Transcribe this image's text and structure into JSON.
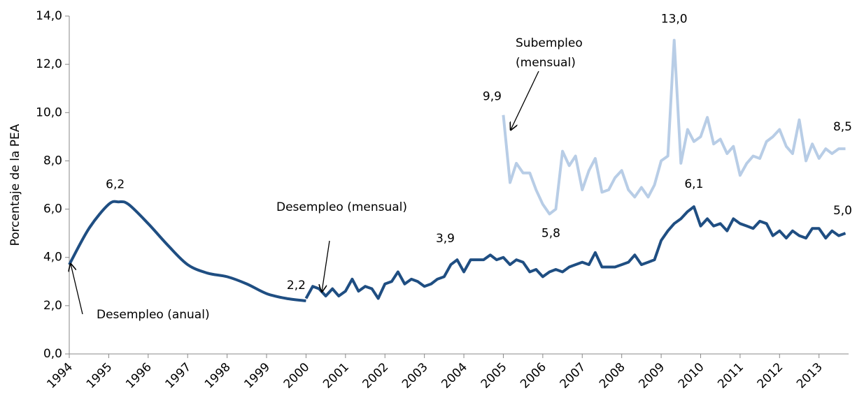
{
  "chart_data": {
    "type": "line",
    "y_label": "Porcentaje de la PEA",
    "xlim": [
      1994,
      2013.75
    ],
    "xticks": [
      1994,
      1995,
      1996,
      1997,
      1998,
      1999,
      2000,
      2001,
      2002,
      2003,
      2004,
      2005,
      2006,
      2007,
      2008,
      2009,
      2010,
      2011,
      2012,
      2013
    ],
    "ylim": [
      0,
      14
    ],
    "yticks": [
      {
        "value": 0,
        "label": "0,0"
      },
      {
        "value": 2,
        "label": "2,0"
      },
      {
        "value": 4,
        "label": "4,0"
      },
      {
        "value": 6,
        "label": "6,0"
      },
      {
        "value": 8,
        "label": "8,0"
      },
      {
        "value": 10,
        "label": "10,0"
      },
      {
        "value": 12,
        "label": "12,0"
      },
      {
        "value": 14,
        "label": "14,0"
      }
    ],
    "series": [
      {
        "name": "Desempleo (anual)",
        "color": "#1f4e82",
        "smooth": true,
        "x": [
          1994,
          1994.5,
          1995,
          1995.25,
          1995.5,
          1996,
          1996.5,
          1997,
          1997.5,
          1998,
          1998.5,
          1999,
          1999.5,
          2000
        ],
        "values": [
          3.7,
          5.2,
          6.2,
          6.3,
          6.2,
          5.4,
          4.5,
          3.7,
          3.35,
          3.2,
          2.9,
          2.5,
          2.3,
          2.2
        ]
      },
      {
        "name": "Desempleo (mensual)",
        "color": "#1f4e82",
        "x": [
          2000,
          2000.17,
          2000.33,
          2000.5,
          2000.67,
          2000.83,
          2001,
          2001.17,
          2001.33,
          2001.5,
          2001.67,
          2001.83,
          2002,
          2002.17,
          2002.33,
          2002.5,
          2002.67,
          2002.83,
          2003,
          2003.17,
          2003.33,
          2003.5,
          2003.67,
          2003.83,
          2004,
          2004.17,
          2004.33,
          2004.5,
          2004.67,
          2004.83,
          2005,
          2005.17,
          2005.33,
          2005.5,
          2005.67,
          2005.83,
          2006,
          2006.17,
          2006.33,
          2006.5,
          2006.67,
          2006.83,
          2007,
          2007.17,
          2007.33,
          2007.5,
          2007.67,
          2007.83,
          2008,
          2008.17,
          2008.33,
          2008.5,
          2008.67,
          2008.83,
          2009,
          2009.17,
          2009.33,
          2009.5,
          2009.67,
          2009.83,
          2010,
          2010.17,
          2010.33,
          2010.5,
          2010.67,
          2010.83,
          2011,
          2011.17,
          2011.33,
          2011.5,
          2011.67,
          2011.83,
          2012,
          2012.17,
          2012.33,
          2012.5,
          2012.67,
          2012.83,
          2013,
          2013.17,
          2013.33,
          2013.5,
          2013.67
        ],
        "values": [
          2.3,
          2.8,
          2.7,
          2.4,
          2.7,
          2.4,
          2.6,
          3.1,
          2.6,
          2.8,
          2.7,
          2.3,
          2.9,
          3.0,
          3.4,
          2.9,
          3.1,
          3.0,
          2.8,
          2.9,
          3.1,
          3.2,
          3.7,
          3.9,
          3.4,
          3.9,
          3.9,
          3.9,
          4.1,
          3.9,
          4.0,
          3.7,
          3.9,
          3.8,
          3.4,
          3.5,
          3.2,
          3.4,
          3.5,
          3.4,
          3.6,
          3.7,
          3.8,
          3.7,
          4.2,
          3.6,
          3.6,
          3.6,
          3.7,
          3.8,
          4.1,
          3.7,
          3.8,
          3.9,
          4.7,
          5.1,
          5.4,
          5.6,
          5.9,
          6.1,
          5.3,
          5.6,
          5.3,
          5.4,
          5.1,
          5.6,
          5.4,
          5.3,
          5.2,
          5.5,
          5.4,
          4.9,
          5.1,
          4.8,
          5.1,
          4.9,
          4.8,
          5.2,
          5.2,
          4.8,
          5.1,
          4.9,
          5.0
        ]
      },
      {
        "name": "Subempleo (mensual)",
        "color": "#b8cde6",
        "x": [
          2005,
          2005.17,
          2005.33,
          2005.5,
          2005.67,
          2005.83,
          2006,
          2006.17,
          2006.33,
          2006.5,
          2006.67,
          2006.83,
          2007,
          2007.17,
          2007.33,
          2007.5,
          2007.67,
          2007.83,
          2008,
          2008.17,
          2008.33,
          2008.5,
          2008.67,
          2008.83,
          2009,
          2009.17,
          2009.33,
          2009.5,
          2009.67,
          2009.83,
          2010,
          2010.17,
          2010.33,
          2010.5,
          2010.67,
          2010.83,
          2011,
          2011.17,
          2011.33,
          2011.5,
          2011.67,
          2011.83,
          2012,
          2012.17,
          2012.33,
          2012.5,
          2012.67,
          2012.83,
          2013,
          2013.17,
          2013.33,
          2013.5,
          2013.67
        ],
        "values": [
          9.9,
          7.1,
          7.9,
          7.5,
          7.5,
          6.8,
          6.2,
          5.8,
          6.0,
          8.4,
          7.8,
          8.2,
          6.8,
          7.6,
          8.1,
          6.7,
          6.8,
          7.3,
          7.6,
          6.8,
          6.5,
          6.9,
          6.5,
          7.0,
          8.0,
          8.2,
          13.0,
          7.9,
          9.3,
          8.8,
          9.0,
          9.8,
          8.7,
          8.9,
          8.3,
          8.6,
          7.4,
          7.9,
          8.2,
          8.1,
          8.8,
          9.0,
          9.3,
          8.6,
          8.3,
          9.7,
          8.0,
          8.7,
          8.1,
          8.5,
          8.3,
          8.5,
          8.5
        ]
      }
    ],
    "annotations": [
      {
        "label": "6,2",
        "value": 6.2,
        "x": 1995.2
      },
      {
        "label": "2,2",
        "value": 2.2,
        "x": 2000
      },
      {
        "label": "3,9",
        "value": 3.9,
        "x": 2003.83
      },
      {
        "label": "5,8",
        "value": 5.8,
        "x": 2006.17
      },
      {
        "label": "6,1",
        "value": 6.1,
        "x": 2009.83
      },
      {
        "label": "13,0",
        "value": 13.0,
        "x": 2009.33
      },
      {
        "label": "9,9",
        "value": 9.9,
        "x": 2005
      },
      {
        "label": "8,5",
        "value": 8.5,
        "x": 2013.67
      },
      {
        "label": "5,0",
        "value": 5.0,
        "x": 2013.67
      }
    ]
  }
}
